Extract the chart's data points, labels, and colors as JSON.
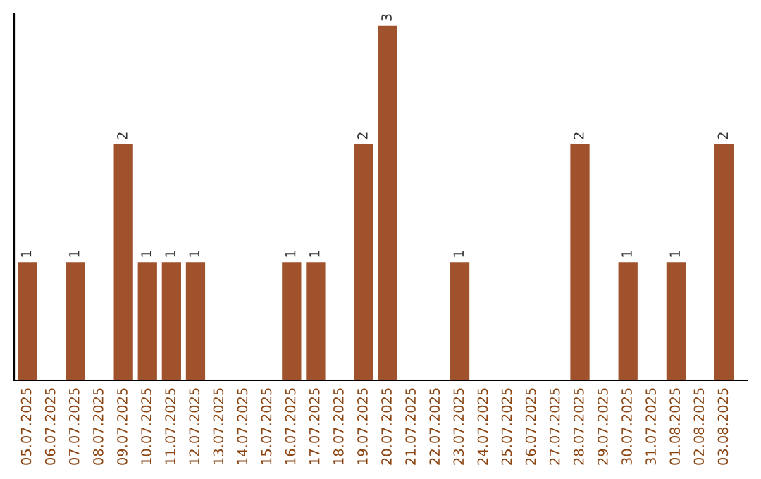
{
  "chart_data": {
    "type": "bar",
    "categories": [
      "05.07.2025",
      "06.07.2025",
      "07.07.2025",
      "08.07.2025",
      "09.07.2025",
      "10.07.2025",
      "11.07.2025",
      "12.07.2025",
      "13.07.2025",
      "14.07.2025",
      "15.07.2025",
      "16.07.2025",
      "17.07.2025",
      "18.07.2025",
      "19.07.2025",
      "20.07.2025",
      "21.07.2025",
      "22.07.2025",
      "23.07.2025",
      "24.07.2025",
      "25.07.2025",
      "26.07.2025",
      "27.07.2025",
      "28.07.2025",
      "29.07.2025",
      "30.07.2025",
      "31.07.2025",
      "01.08.2025",
      "02.08.2025",
      "03.08.2025"
    ],
    "values": [
      1,
      0,
      1,
      0,
      2,
      1,
      1,
      1,
      0,
      0,
      0,
      1,
      1,
      0,
      2,
      3,
      0,
      0,
      1,
      0,
      0,
      0,
      0,
      2,
      0,
      1,
      0,
      1,
      0,
      2
    ],
    "value_labels": [
      "1",
      null,
      "1",
      null,
      "2",
      "1",
      "1",
      "1",
      null,
      null,
      null,
      "1",
      "1",
      null,
      "2",
      "3",
      null,
      null,
      "1",
      null,
      null,
      null,
      null,
      "2",
      null,
      "1",
      null,
      "1",
      null,
      "2"
    ],
    "color": "#a0522d",
    "ylim": [
      0,
      3.1
    ],
    "tick_labels": "x",
    "grid": false,
    "legend": false
  }
}
